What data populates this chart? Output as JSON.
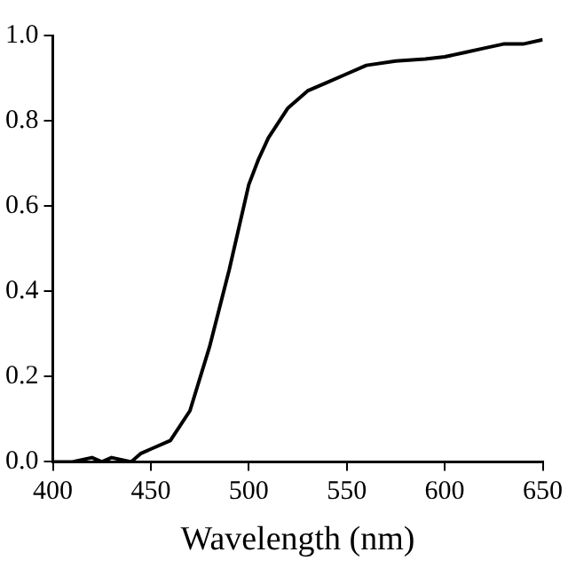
{
  "chart_data": {
    "type": "line",
    "xlabel": "Wavelength (nm)",
    "x": [
      400,
      410,
      420,
      425,
      430,
      440,
      445,
      450,
      460,
      470,
      480,
      490,
      500,
      505,
      510,
      520,
      530,
      540,
      550,
      560,
      575,
      590,
      600,
      610,
      620,
      630,
      640,
      650
    ],
    "series": [
      {
        "color": "#000000",
        "values": [
          0.0,
          0.0,
          0.01,
          0.0,
          0.01,
          0.0,
          0.02,
          0.03,
          0.05,
          0.12,
          0.27,
          0.45,
          0.65,
          0.71,
          0.76,
          0.83,
          0.87,
          0.89,
          0.91,
          0.93,
          0.94,
          0.945,
          0.95,
          0.96,
          0.97,
          0.98,
          0.98,
          0.99
        ]
      }
    ],
    "xlim": [
      400,
      650
    ],
    "xticks": [
      400,
      450,
      500,
      550,
      600,
      650
    ],
    "ylim": [
      0,
      1
    ],
    "yticks": [
      {
        "value": 0,
        "label": "0.0"
      },
      {
        "value": 0.2,
        "label": "0.2"
      },
      {
        "value": 0.4,
        "label": "0.4"
      },
      {
        "value": 0.6,
        "label": "0.6"
      },
      {
        "value": 0.8,
        "label": "0.8"
      },
      {
        "value": 1,
        "label": "1.0"
      }
    ],
    "grid": false,
    "legend": false,
    "marker": "none",
    "line_style": "solid"
  }
}
